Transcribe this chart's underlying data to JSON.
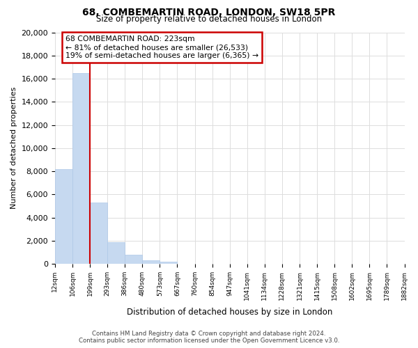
{
  "title": "68, COMBEMARTIN ROAD, LONDON, SW18 5PR",
  "subtitle": "Size of property relative to detached houses in London",
  "xlabel": "Distribution of detached houses by size in London",
  "ylabel": "Number of detached properties",
  "bar_values": [
    8200,
    16500,
    5300,
    1850,
    800,
    300,
    200,
    0,
    0,
    0,
    0,
    0,
    0,
    0,
    0,
    0,
    0,
    0,
    0,
    0
  ],
  "bar_labels": [
    "12sqm",
    "106sqm",
    "199sqm",
    "293sqm",
    "386sqm",
    "480sqm",
    "573sqm",
    "667sqm",
    "760sqm",
    "854sqm",
    "947sqm",
    "1041sqm",
    "1134sqm",
    "1228sqm",
    "1321sqm",
    "1415sqm",
    "1508sqm",
    "1602sqm",
    "1695sqm",
    "1789sqm",
    "1882sqm"
  ],
  "bar_color": "#c6d9f0",
  "bar_edge_color": "#aec8e8",
  "grid_color": "#dddddd",
  "annotation_box_color": "#ffffff",
  "annotation_border_color": "#cc0000",
  "annotation_title": "68 COMBEMARTIN ROAD: 223sqm",
  "annotation_line1": "← 81% of detached houses are smaller (26,533)",
  "annotation_line2": "19% of semi-detached houses are larger (6,365) →",
  "vline_color": "#cc0000",
  "vline_x": 2,
  "ylim": [
    0,
    20000
  ],
  "yticks": [
    0,
    2000,
    4000,
    6000,
    8000,
    10000,
    12000,
    14000,
    16000,
    18000,
    20000
  ],
  "footer_line1": "Contains HM Land Registry data © Crown copyright and database right 2024.",
  "footer_line2": "Contains public sector information licensed under the Open Government Licence v3.0.",
  "background_color": "#ffffff"
}
